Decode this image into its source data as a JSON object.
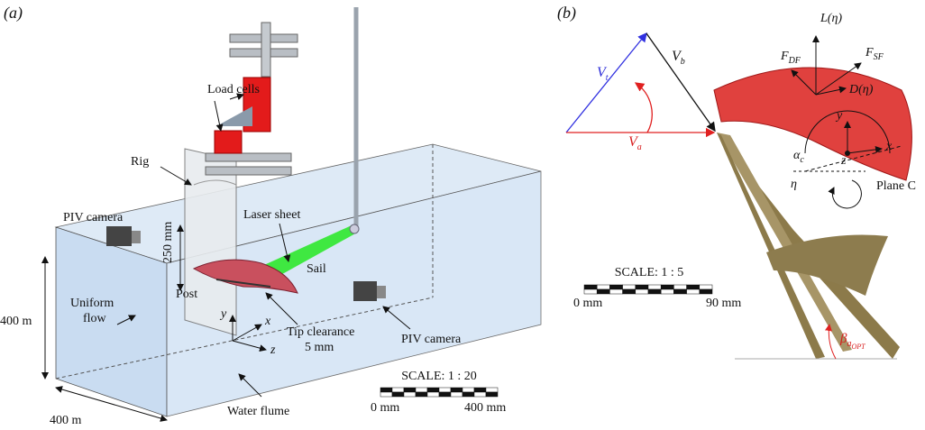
{
  "panel_a": {
    "label": "(a)",
    "load_cells": "Load cells",
    "rig": "Rig",
    "piv_camera_left": "PIV camera",
    "laser_sheet": "Laser sheet",
    "height_250": "250 mm",
    "sail": "Sail",
    "post": "Post",
    "depth_400": "400 m",
    "uniform_flow": [
      "Uniform",
      "flow"
    ],
    "axis_y": "y",
    "axis_x": "x",
    "axis_z": "z",
    "tip_clearance": [
      "Tip clearance",
      "5 mm"
    ],
    "piv_camera_right": "PIV camera",
    "width_400": "400 m",
    "water_flume": "Water flume",
    "scale": {
      "title": "SCALE: 1 : 20",
      "start": "0 mm",
      "end": "400 mm"
    }
  },
  "panel_b": {
    "label": "(b)",
    "v_t": {
      "main": "V",
      "sub": "t"
    },
    "v_b": {
      "main": "V",
      "sub": "b"
    },
    "v_a": {
      "main": "V",
      "sub": "a"
    },
    "lift": "L(η)",
    "f_df": {
      "main": "F",
      "sub": "DF"
    },
    "f_sf": {
      "main": "F",
      "sub": "SF"
    },
    "drag": "D(η)",
    "axis_y": "y",
    "axis_x": "x",
    "axis_z": "z",
    "alpha_c": {
      "main": "α",
      "sub": "c"
    },
    "eta": "η",
    "plane_c": "Plane C",
    "scale": {
      "title": "SCALE: 1 : 5",
      "start": "0 mm",
      "end": "90 mm"
    },
    "beta": {
      "main": "β",
      "sub": "a",
      "subsub": "OPT"
    }
  }
}
